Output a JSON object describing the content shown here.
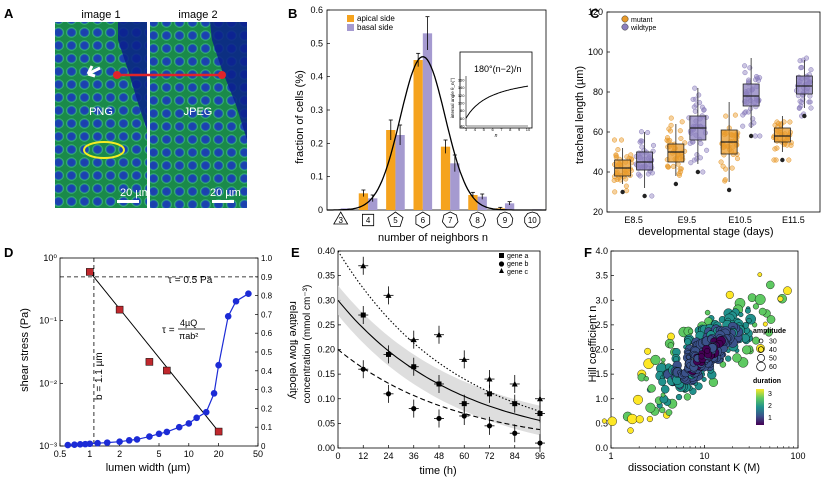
{
  "panels": {
    "A": {
      "label": "A",
      "image1_title": "image 1",
      "image2_title": "image 2",
      "image1_label": "PNG",
      "image2_label": "JPEG",
      "scalebar1": "20 µm",
      "scalebar2": "20 µm"
    },
    "B": {
      "label": "B"
    },
    "C": {
      "label": "C"
    },
    "D": {
      "label": "D"
    },
    "E": {
      "label": "E"
    },
    "F": {
      "label": "F"
    }
  },
  "chart_data": [
    {
      "id": "B",
      "type": "bar",
      "title": "",
      "xlabel": "number of neighbors n",
      "ylabel": "fraction of cells (%)",
      "ylim": [
        0,
        0.6
      ],
      "yticks": [
        "0",
        "0.1",
        "0.2",
        "0.3",
        "0.4",
        "0.5",
        "0.6"
      ],
      "categories": [
        "3",
        "4",
        "5",
        "6",
        "7",
        "8",
        "9",
        "10"
      ],
      "category_shapes": [
        "triangle",
        "square",
        "pentagon",
        "hexagon",
        "heptagon",
        "octagon",
        "nonagon",
        "decagon"
      ],
      "series": [
        {
          "name": "apical side",
          "color": "#f5a31e",
          "values": [
            0.0,
            0.05,
            0.24,
            0.45,
            0.19,
            0.045,
            0.005,
            0.0
          ],
          "errors": [
            0.0,
            0.01,
            0.03,
            0.02,
            0.02,
            0.008,
            0.003,
            0.0
          ]
        },
        {
          "name": "basal side",
          "color": "#a59ad0",
          "values": [
            0.005,
            0.035,
            0.225,
            0.53,
            0.14,
            0.04,
            0.02,
            0.002
          ],
          "errors": [
            0.0,
            0.01,
            0.03,
            0.05,
            0.025,
            0.008,
            0.005,
            0.0
          ]
        }
      ],
      "fit_curve": "gaussian, peak ≈0.46 at n=6",
      "inset": {
        "formula": "180°(n−2)/n",
        "ylabel": "internal angle θ_n(°)",
        "xlabel": "n",
        "xticks": [
          "3",
          "4",
          "5",
          "6",
          "7",
          "8",
          "9",
          "10"
        ],
        "yticks": [
          "40",
          "60",
          "80",
          "100",
          "120",
          "140",
          "160"
        ],
        "xlim": [
          3,
          10
        ],
        "ylim": [
          40,
          160
        ]
      }
    },
    {
      "id": "C",
      "type": "box",
      "xlabel": "developmental stage (days)",
      "ylabel": "tracheal length (µm)",
      "ylim": [
        20,
        120
      ],
      "yticks": [
        "20",
        "40",
        "60",
        "80",
        "100",
        "120"
      ],
      "categories": [
        "E8.5",
        "E9.5",
        "E10.5",
        "E11.5"
      ],
      "series": [
        {
          "name": "mutant",
          "color": "#e89a2a",
          "boxes": [
            {
              "whislo": 34,
              "q1": 38,
              "med": 42,
              "q3": 46,
              "whishi": 52
            },
            {
              "whislo": 38,
              "q1": 45,
              "med": 50,
              "q3": 54,
              "whishi": 64
            },
            {
              "whislo": 35,
              "q1": 49,
              "med": 55,
              "q3": 61,
              "whishi": 75
            },
            {
              "whislo": 50,
              "q1": 55,
              "med": 58,
              "q3": 62,
              "whishi": 68
            }
          ]
        },
        {
          "name": "wildtype",
          "color": "#8b7fbd",
          "boxes": [
            {
              "whislo": 32,
              "q1": 41,
              "med": 45,
              "q3": 50,
              "whishi": 60
            },
            {
              "whislo": 44,
              "q1": 56,
              "med": 62,
              "q3": 68,
              "whishi": 82
            },
            {
              "whislo": 62,
              "q1": 73,
              "med": 78,
              "q3": 84,
              "whishi": 97
            },
            {
              "whislo": 72,
              "q1": 79,
              "med": 83,
              "q3": 88,
              "whishi": 96
            }
          ]
        }
      ]
    },
    {
      "id": "D",
      "type": "line",
      "xlabel": "lumen width (µm)",
      "xscale": "log",
      "xlim": [
        0.5,
        50
      ],
      "xticks": [
        "0.5",
        "1",
        "2",
        "5",
        "10",
        "20",
        "50"
      ],
      "ylabel": "shear stress (Pa)",
      "yscale": "log",
      "ylim": [
        0.001,
        1
      ],
      "yticks": [
        "10⁻³",
        "10⁻²",
        "10⁻¹",
        "10⁰"
      ],
      "y2label": "relative flow velocity",
      "y2lim": [
        0,
        1
      ],
      "y2ticks": [
        "0",
        "0.1",
        "0.2",
        "0.3",
        "0.4",
        "0.5",
        "0.6",
        "0.7",
        "0.8",
        "0.9",
        "1.0"
      ],
      "annotations": {
        "threshold": "τ = 0.5 Pa",
        "width_line": "b = 1.1 µm",
        "eq_lhs": "τ =",
        "eq_num": "4µQ",
        "eq_den": "πab²"
      },
      "threshold_value": 0.5,
      "width_value": 1.1,
      "series": [
        {
          "name": "shear stress",
          "color": "#c0282d",
          "marker": "square",
          "x": [
            1,
            2,
            4,
            6,
            20
          ],
          "y": [
            0.6,
            0.15,
            0.022,
            0.016,
            0.0017
          ]
        },
        {
          "name": "relative flow velocity",
          "color": "#1c2bd6",
          "marker": "circle",
          "axis": "y2",
          "x": [
            0.6,
            0.7,
            0.8,
            0.9,
            1.0,
            1.2,
            1.5,
            2,
            2.5,
            3,
            4,
            5,
            6,
            8,
            10,
            12,
            15,
            18,
            20,
            25,
            30,
            40
          ],
          "y": [
            0.005,
            0.007,
            0.009,
            0.01,
            0.012,
            0.015,
            0.018,
            0.023,
            0.03,
            0.035,
            0.05,
            0.065,
            0.075,
            0.1,
            0.12,
            0.15,
            0.18,
            0.28,
            0.43,
            0.69,
            0.77,
            0.81
          ]
        }
      ]
    },
    {
      "id": "E",
      "type": "scatter",
      "xlabel": "time (h)",
      "xlim": [
        0,
        96
      ],
      "xticks": [
        "0",
        "12",
        "24",
        "36",
        "48",
        "60",
        "72",
        "84",
        "96"
      ],
      "ylabel": "concentration (mmol cm⁻³)",
      "ylim": [
        0,
        0.4
      ],
      "yticks": [
        "0.00",
        "0.05",
        "0.10",
        "0.15",
        "0.20",
        "0.25",
        "0.30",
        "0.35",
        "0.40"
      ],
      "legend_position": "top-right",
      "series": [
        {
          "name": "gene a",
          "marker": "square",
          "line": "solid",
          "x": [
            12,
            24,
            36,
            48,
            60,
            72,
            84,
            96
          ],
          "y": [
            0.27,
            0.19,
            0.165,
            0.13,
            0.09,
            0.11,
            0.09,
            0.07
          ]
        },
        {
          "name": "gene b",
          "marker": "circle",
          "line": "dashed",
          "x": [
            12,
            24,
            36,
            48,
            60,
            72,
            84,
            96
          ],
          "y": [
            0.16,
            0.11,
            0.08,
            0.06,
            0.065,
            0.045,
            0.03,
            0.01
          ]
        },
        {
          "name": "gene c",
          "marker": "triangle",
          "line": "dotted",
          "x": [
            12,
            24,
            36,
            48,
            60,
            72,
            84,
            96
          ],
          "y": [
            0.37,
            0.31,
            0.22,
            0.23,
            0.18,
            0.14,
            0.13,
            0.1
          ]
        }
      ],
      "fits": [
        {
          "name": "gene a",
          "a": 0.3,
          "k": 0.0175
        },
        {
          "name": "gene b",
          "a": 0.2,
          "k": 0.0175
        },
        {
          "name": "gene c",
          "a": 0.4,
          "k": 0.0175
        }
      ]
    },
    {
      "id": "F",
      "type": "scatter",
      "xlabel": "dissociation constant K (M)",
      "xscale": "log",
      "xlim": [
        1,
        100
      ],
      "xticks": [
        "1",
        "10",
        "100"
      ],
      "ylabel": "Hill coefficient n",
      "ylim": [
        0,
        4
      ],
      "yticks": [
        "0.0",
        "0.5",
        "1.0",
        "1.5",
        "2.0",
        "2.5",
        "3.0",
        "3.5",
        "4.0"
      ],
      "size_legend": {
        "title": "amplitude",
        "values": [
          "30",
          "40",
          "50",
          "60"
        ]
      },
      "color_legend": {
        "title": "duration",
        "ticks": [
          "3",
          "2",
          "1"
        ]
      },
      "n_points": 300,
      "center": {
        "K": 10,
        "n": 1.9
      }
    }
  ]
}
